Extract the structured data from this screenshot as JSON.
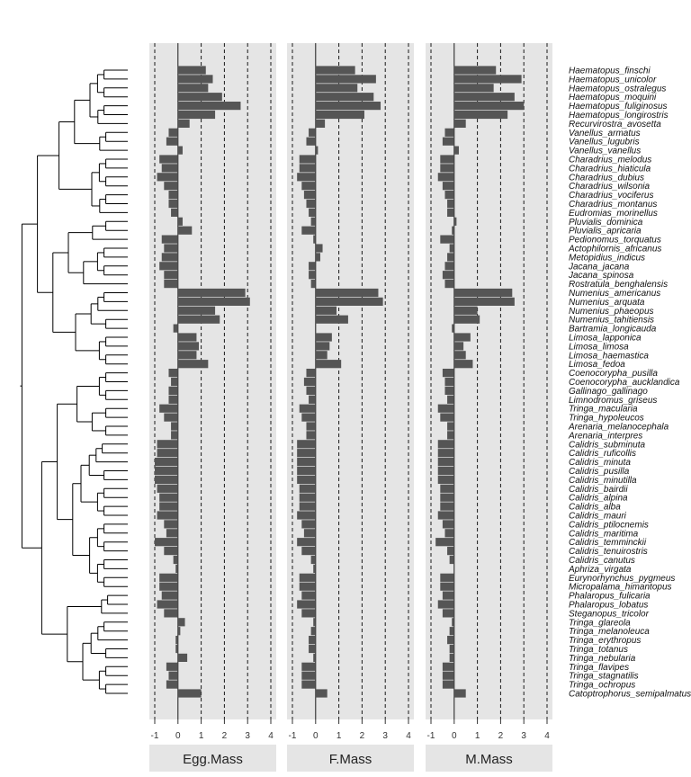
{
  "chart_data": {
    "type": "bar",
    "orientation": "horizontal",
    "title": "",
    "xlabel": "",
    "ylabel": "",
    "xlim": [
      -1,
      4
    ],
    "x_ticks": [
      "-1",
      "0",
      "1",
      "2",
      "3",
      "4"
    ],
    "grid": "dashed vertical lines at -1, 1, 2, 3, 4; solid line at 0",
    "has_phylogeny": true,
    "colors": {
      "panel_bg": "#e5e5e5",
      "bar": "#555555",
      "tree": "#000000",
      "title_strip": "#e5e5e5"
    },
    "categories": [
      "Haematopus_finschi",
      "Haematopus_unicolor",
      "Haematopus_ostralegus",
      "Haematopus_moquini",
      "Haematopus_fuliginosus",
      "Haematopus_longirostris",
      "Recurvirostra_avosetta",
      "Vanellus_armatus",
      "Vanellus_lugubris",
      "Vanellus_vanellus",
      "Charadrius_melodus",
      "Charadrius_hiaticula",
      "Charadrius_dubius",
      "Charadrius_wilsonia",
      "Charadrius_vociferus",
      "Charadrius_montanus",
      "Eudromias_morinellus",
      "Pluvialis_dominica",
      "Pluvialis_apricaria",
      "Pedionomus_torquatus",
      "Actophilornis_africanus",
      "Metopidius_indicus",
      "Jacana_jacana",
      "Jacana_spinosa",
      "Rostratula_benghalensis",
      "Numenius_americanus",
      "Numenius_arquata",
      "Numenius_phaeopus",
      "Numenius_tahitiensis",
      "Bartramia_longicauda",
      "Limosa_lapponica",
      "Limosa_limosa",
      "Limosa_haemastica",
      "Limosa_fedoa",
      "Coenocorypha_pusilla",
      "Coenocorypha_aucklandica",
      "Gallinago_gallinago",
      "Limnodromus_griseus",
      "Tringa_macularia",
      "Tringa_hypoleucos",
      "Arenaria_melanocephala",
      "Arenaria_interpres",
      "Calidris_subminuta",
      "Calidris_ruficollis",
      "Calidris_minuta",
      "Calidris_pusilla",
      "Calidris_minutilla",
      "Calidris_bairdii",
      "Calidris_alpina",
      "Calidris_alba",
      "Calidris_mauri",
      "Calidris_ptilocnemis",
      "Calidris_maritima",
      "Calidris_temminckii",
      "Calidris_tenuirostris",
      "Calidris_canutus",
      "Aphriza_virgata",
      "Eurynorhynchus_pygmeus",
      "Micropalama_himantopus",
      "Phalaropus_fulicaria",
      "Phalaropus_lobatus",
      "Steganopus_tricolor",
      "Tringa_glareola",
      "Tringa_melanoleuca",
      "Tringa_erythropus",
      "Tringa_totanus",
      "Tringa_nebularia",
      "Tringa_flavipes",
      "Tringa_stagnatilis",
      "Tringa_ochropus",
      "Catoptrophorus_semipalmatus"
    ],
    "series": [
      {
        "name": "Egg.Mass",
        "values": [
          1.2,
          1.5,
          1.3,
          1.9,
          2.7,
          1.6,
          0.5,
          -0.4,
          -0.5,
          0.2,
          -0.8,
          -0.7,
          -0.9,
          -0.6,
          -0.4,
          -0.4,
          -0.3,
          0.2,
          0.6,
          -0.7,
          -0.6,
          -0.7,
          -0.8,
          -0.6,
          -0.6,
          2.9,
          3.1,
          1.6,
          1.8,
          -0.2,
          0.8,
          0.9,
          0.8,
          1.3,
          -0.4,
          -0.3,
          -0.4,
          -0.4,
          -0.8,
          -0.6,
          -0.3,
          -0.3,
          -0.9,
          -0.9,
          -1.0,
          -1.0,
          -1.0,
          -0.9,
          -0.8,
          -0.8,
          -0.9,
          -0.6,
          -0.5,
          -1.0,
          -0.6,
          -0.2,
          -0.1,
          -0.8,
          -0.8,
          -0.7,
          -0.9,
          -0.6,
          0.3,
          0.1,
          -0.1,
          -0.1,
          0.4,
          -0.5,
          -0.4,
          -0.5,
          1.0
        ]
      },
      {
        "name": "F.Mass",
        "values": [
          1.7,
          2.6,
          1.8,
          2.5,
          2.8,
          2.1,
          0.4,
          -0.3,
          -0.4,
          0.1,
          -0.7,
          -0.7,
          -0.8,
          -0.6,
          -0.5,
          -0.4,
          -0.3,
          -0.2,
          -0.6,
          -0.1,
          0.3,
          0.2,
          -0.3,
          -0.3,
          -0.2,
          2.7,
          2.9,
          0.9,
          1.4,
          0.0,
          0.7,
          0.6,
          0.5,
          1.1,
          -0.4,
          -0.5,
          -0.4,
          -0.3,
          -0.7,
          -0.6,
          -0.4,
          -0.4,
          -0.8,
          -0.8,
          -0.8,
          -0.8,
          -0.8,
          -0.7,
          -0.7,
          -0.7,
          -0.8,
          -0.6,
          -0.5,
          -0.8,
          -0.6,
          -0.2,
          -0.1,
          -0.7,
          -0.7,
          -0.6,
          -0.8,
          -0.6,
          -0.1,
          -0.2,
          -0.3,
          -0.3,
          -0.1,
          -0.6,
          -0.6,
          -0.6,
          0.5
        ]
      },
      {
        "name": "M.Mass",
        "values": [
          1.8,
          2.9,
          1.7,
          2.6,
          3.0,
          2.3,
          0.5,
          -0.4,
          -0.5,
          0.2,
          -0.6,
          -0.6,
          -0.7,
          -0.5,
          -0.4,
          -0.3,
          -0.3,
          0.1,
          -0.1,
          -0.6,
          -0.2,
          -0.3,
          -0.4,
          -0.5,
          -0.4,
          2.5,
          2.6,
          1.0,
          1.1,
          -0.1,
          0.7,
          0.4,
          0.5,
          0.8,
          -0.5,
          -0.4,
          -0.4,
          -0.3,
          -0.7,
          -0.6,
          -0.3,
          -0.3,
          -0.7,
          -0.7,
          -0.7,
          -0.7,
          -0.7,
          -0.6,
          -0.6,
          -0.6,
          -0.7,
          -0.5,
          -0.4,
          -0.8,
          -0.3,
          -0.2,
          0.0,
          -0.6,
          -0.6,
          -0.5,
          -0.7,
          -0.5,
          -0.1,
          -0.2,
          -0.3,
          -0.2,
          -0.2,
          -0.5,
          -0.5,
          -0.5,
          0.5
        ]
      }
    ]
  }
}
